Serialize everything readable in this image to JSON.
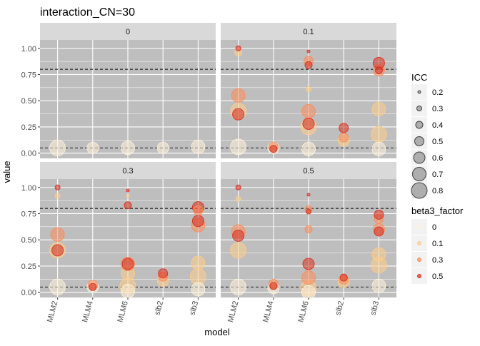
{
  "chart_data": {
    "type": "scatter",
    "title": "interaction_CN=30",
    "xlabel": "model",
    "ylabel": "value",
    "categories": [
      "MLM2",
      "MLM4",
      "MLM6",
      "slb2",
      "slb3"
    ],
    "ylim": [
      -0.05,
      1.08
    ],
    "yticks": [
      "0.00",
      "0.25",
      "0.50",
      "0.75",
      "1.00"
    ],
    "ytick_values": [
      0,
      0.25,
      0.5,
      0.75,
      1.0
    ],
    "hlines": [
      0.05,
      0.8
    ],
    "panels": [
      {
        "label": "0",
        "points": [
          {
            "x": "MLM2",
            "y": 0.05,
            "icc": 0.8,
            "beta3": "0"
          },
          {
            "x": "MLM4",
            "y": 0.05,
            "icc": 0.6,
            "beta3": "0"
          },
          {
            "x": "MLM6",
            "y": 0.05,
            "icc": 0.7,
            "beta3": "0"
          },
          {
            "x": "slb2",
            "y": 0.05,
            "icc": 0.6,
            "beta3": "0"
          },
          {
            "x": "slb3",
            "y": 0.06,
            "icc": 0.7,
            "beta3": "0"
          }
        ]
      },
      {
        "label": "0.1",
        "points": [
          {
            "x": "MLM2",
            "y": 0.06,
            "icc": 0.8,
            "beta3": "0"
          },
          {
            "x": "MLM2",
            "y": 0.4,
            "icc": 0.8,
            "beta3": "0.1"
          },
          {
            "x": "MLM2",
            "y": 0.55,
            "icc": 0.7,
            "beta3": "0.3"
          },
          {
            "x": "MLM2",
            "y": 0.37,
            "icc": 0.6,
            "beta3": "0.5"
          },
          {
            "x": "MLM2",
            "y": 0.96,
            "icc": 0.4,
            "beta3": "0.1"
          },
          {
            "x": "MLM2",
            "y": 1.0,
            "icc": 0.3,
            "beta3": "0.5"
          },
          {
            "x": "MLM4",
            "y": 0.05,
            "icc": 0.6,
            "beta3": "0"
          },
          {
            "x": "MLM4",
            "y": 0.06,
            "icc": 0.5,
            "beta3": "0.3"
          },
          {
            "x": "MLM4",
            "y": 0.04,
            "icc": 0.4,
            "beta3": "0.5"
          },
          {
            "x": "MLM6",
            "y": 0.04,
            "icc": 0.7,
            "beta3": "0"
          },
          {
            "x": "MLM6",
            "y": 0.25,
            "icc": 0.8,
            "beta3": "0.1"
          },
          {
            "x": "MLM6",
            "y": 0.4,
            "icc": 0.7,
            "beta3": "0.3"
          },
          {
            "x": "MLM6",
            "y": 0.28,
            "icc": 0.6,
            "beta3": "0.5"
          },
          {
            "x": "MLM6",
            "y": 0.61,
            "icc": 0.3,
            "beta3": "0.1"
          },
          {
            "x": "MLM6",
            "y": 0.88,
            "icc": 0.5,
            "beta3": "0.3"
          },
          {
            "x": "MLM6",
            "y": 0.84,
            "icc": 0.4,
            "beta3": "0.5"
          },
          {
            "x": "MLM6",
            "y": 0.97,
            "icc": 0.2,
            "beta3": "0.5"
          },
          {
            "x": "slb2",
            "y": 0.12,
            "icc": 0.6,
            "beta3": "0.1"
          },
          {
            "x": "slb2",
            "y": 0.15,
            "icc": 0.5,
            "beta3": "0.3"
          },
          {
            "x": "slb2",
            "y": 0.24,
            "icc": 0.5,
            "beta3": "0.5"
          },
          {
            "x": "slb3",
            "y": 0.04,
            "icc": 0.7,
            "beta3": "0"
          },
          {
            "x": "slb3",
            "y": 0.18,
            "icc": 0.8,
            "beta3": "0.1"
          },
          {
            "x": "slb3",
            "y": 0.42,
            "icc": 0.7,
            "beta3": "0.1"
          },
          {
            "x": "slb3",
            "y": 0.79,
            "icc": 0.6,
            "beta3": "0.3"
          },
          {
            "x": "slb3",
            "y": 0.86,
            "icc": 0.6,
            "beta3": "0.5"
          },
          {
            "x": "slb3",
            "y": 0.79,
            "icc": 0.4,
            "beta3": "0.5"
          }
        ]
      },
      {
        "label": "0.3",
        "points": [
          {
            "x": "MLM2",
            "y": 0.05,
            "icc": 0.8,
            "beta3": "0"
          },
          {
            "x": "MLM2",
            "y": 0.4,
            "icc": 0.8,
            "beta3": "0.1"
          },
          {
            "x": "MLM2",
            "y": 0.55,
            "icc": 0.7,
            "beta3": "0.3"
          },
          {
            "x": "MLM2",
            "y": 0.4,
            "icc": 0.6,
            "beta3": "0.5"
          },
          {
            "x": "MLM2",
            "y": 0.92,
            "icc": 0.3,
            "beta3": "0.1"
          },
          {
            "x": "MLM2",
            "y": 1.0,
            "icc": 0.3,
            "beta3": "0.5"
          },
          {
            "x": "MLM4",
            "y": 0.05,
            "icc": 0.6,
            "beta3": "0"
          },
          {
            "x": "MLM4",
            "y": 0.07,
            "icc": 0.5,
            "beta3": "0.3"
          },
          {
            "x": "MLM4",
            "y": 0.05,
            "icc": 0.4,
            "beta3": "0.5"
          },
          {
            "x": "MLM6",
            "y": 0.01,
            "icc": 0.7,
            "beta3": "0"
          },
          {
            "x": "MLM6",
            "y": 0.06,
            "icc": 0.8,
            "beta3": "0.1"
          },
          {
            "x": "MLM6",
            "y": 0.18,
            "icc": 0.7,
            "beta3": "0.1"
          },
          {
            "x": "MLM6",
            "y": 0.27,
            "icc": 0.7,
            "beta3": "0.3"
          },
          {
            "x": "MLM6",
            "y": 0.27,
            "icc": 0.6,
            "beta3": "0.5"
          },
          {
            "x": "MLM6",
            "y": 0.83,
            "icc": 0.4,
            "beta3": "0.5"
          },
          {
            "x": "MLM6",
            "y": 0.92,
            "icc": 0.2,
            "beta3": "0.1"
          },
          {
            "x": "MLM6",
            "y": 0.97,
            "icc": 0.2,
            "beta3": "0.5"
          },
          {
            "x": "slb2",
            "y": 0.11,
            "icc": 0.6,
            "beta3": "0.1"
          },
          {
            "x": "slb2",
            "y": 0.15,
            "icc": 0.5,
            "beta3": "0.3"
          },
          {
            "x": "slb2",
            "y": 0.18,
            "icc": 0.5,
            "beta3": "0.5"
          },
          {
            "x": "slb3",
            "y": 0.03,
            "icc": 0.7,
            "beta3": "0"
          },
          {
            "x": "slb3",
            "y": 0.15,
            "icc": 0.8,
            "beta3": "0.1"
          },
          {
            "x": "slb3",
            "y": 0.28,
            "icc": 0.7,
            "beta3": "0.1"
          },
          {
            "x": "slb3",
            "y": 0.64,
            "icc": 0.7,
            "beta3": "0.3"
          },
          {
            "x": "slb3",
            "y": 0.68,
            "icc": 0.6,
            "beta3": "0.5"
          },
          {
            "x": "slb3",
            "y": 0.78,
            "icc": 0.5,
            "beta3": "0.3"
          },
          {
            "x": "slb3",
            "y": 0.81,
            "icc": 0.6,
            "beta3": "0.5"
          }
        ]
      },
      {
        "label": "0.5",
        "points": [
          {
            "x": "MLM2",
            "y": 0.05,
            "icc": 0.8,
            "beta3": "0"
          },
          {
            "x": "MLM2",
            "y": 0.4,
            "icc": 0.8,
            "beta3": "0.1"
          },
          {
            "x": "MLM2",
            "y": 0.58,
            "icc": 0.7,
            "beta3": "0.3"
          },
          {
            "x": "MLM2",
            "y": 0.54,
            "icc": 0.6,
            "beta3": "0.5"
          },
          {
            "x": "MLM2",
            "y": 0.89,
            "icc": 0.3,
            "beta3": "0.1"
          },
          {
            "x": "MLM2",
            "y": 1.0,
            "icc": 0.3,
            "beta3": "0.5"
          },
          {
            "x": "MLM4",
            "y": 0.04,
            "icc": 0.6,
            "beta3": "0"
          },
          {
            "x": "MLM4",
            "y": 0.08,
            "icc": 0.5,
            "beta3": "0.3"
          },
          {
            "x": "MLM4",
            "y": 0.06,
            "icc": 0.4,
            "beta3": "0.5"
          },
          {
            "x": "MLM6",
            "y": 0.0,
            "icc": 0.7,
            "beta3": "0"
          },
          {
            "x": "MLM6",
            "y": 0.04,
            "icc": 0.8,
            "beta3": "0.1"
          },
          {
            "x": "MLM6",
            "y": 0.14,
            "icc": 0.7,
            "beta3": "0.3"
          },
          {
            "x": "MLM6",
            "y": 0.27,
            "icc": 0.6,
            "beta3": "0.5"
          },
          {
            "x": "MLM6",
            "y": 0.6,
            "icc": 0.4,
            "beta3": "0.3"
          },
          {
            "x": "MLM6",
            "y": 0.79,
            "icc": 0.4,
            "beta3": "0.3"
          },
          {
            "x": "MLM6",
            "y": 0.77,
            "icc": 0.3,
            "beta3": "0.5"
          },
          {
            "x": "MLM6",
            "y": 0.93,
            "icc": 0.2,
            "beta3": "0.5"
          },
          {
            "x": "slb2",
            "y": 0.1,
            "icc": 0.6,
            "beta3": "0.1"
          },
          {
            "x": "slb2",
            "y": 0.12,
            "icc": 0.5,
            "beta3": "0.3"
          },
          {
            "x": "slb2",
            "y": 0.14,
            "icc": 0.4,
            "beta3": "0.5"
          },
          {
            "x": "slb3",
            "y": 0.06,
            "icc": 0.7,
            "beta3": "0"
          },
          {
            "x": "slb3",
            "y": 0.26,
            "icc": 0.8,
            "beta3": "0.1"
          },
          {
            "x": "slb3",
            "y": 0.36,
            "icc": 0.7,
            "beta3": "0.1"
          },
          {
            "x": "slb3",
            "y": 0.6,
            "icc": 0.6,
            "beta3": "0.3"
          },
          {
            "x": "slb3",
            "y": 0.58,
            "icc": 0.5,
            "beta3": "0.5"
          },
          {
            "x": "slb3",
            "y": 0.7,
            "icc": 0.5,
            "beta3": "0.3"
          },
          {
            "x": "slb3",
            "y": 0.74,
            "icc": 0.5,
            "beta3": "0.5"
          }
        ]
      }
    ],
    "legend_size": {
      "title": "ICC",
      "levels": [
        {
          "label": "0.2",
          "value": 0.2
        },
        {
          "label": "0.3",
          "value": 0.3
        },
        {
          "label": "0.4",
          "value": 0.4
        },
        {
          "label": "0.5",
          "value": 0.5
        },
        {
          "label": "0.6",
          "value": 0.6
        },
        {
          "label": "0.7",
          "value": 0.7
        },
        {
          "label": "0.8",
          "value": 0.8
        }
      ]
    },
    "legend_color": {
      "title": "beta3_factor",
      "levels": [
        {
          "label": "0",
          "color": "#FEF0D9"
        },
        {
          "label": "0.1",
          "color": "#FDCC8A"
        },
        {
          "label": "0.3",
          "color": "#FC8D59"
        },
        {
          "label": "0.5",
          "color": "#D7301F"
        }
      ]
    },
    "legend_placement": "right",
    "grid": true,
    "colors": {
      "panel_bg": "#BEBEBE",
      "strip_bg": "#D9D9D9",
      "grid": "#FFFFFF",
      "legend_key_bg": "#F2F2F2"
    }
  }
}
